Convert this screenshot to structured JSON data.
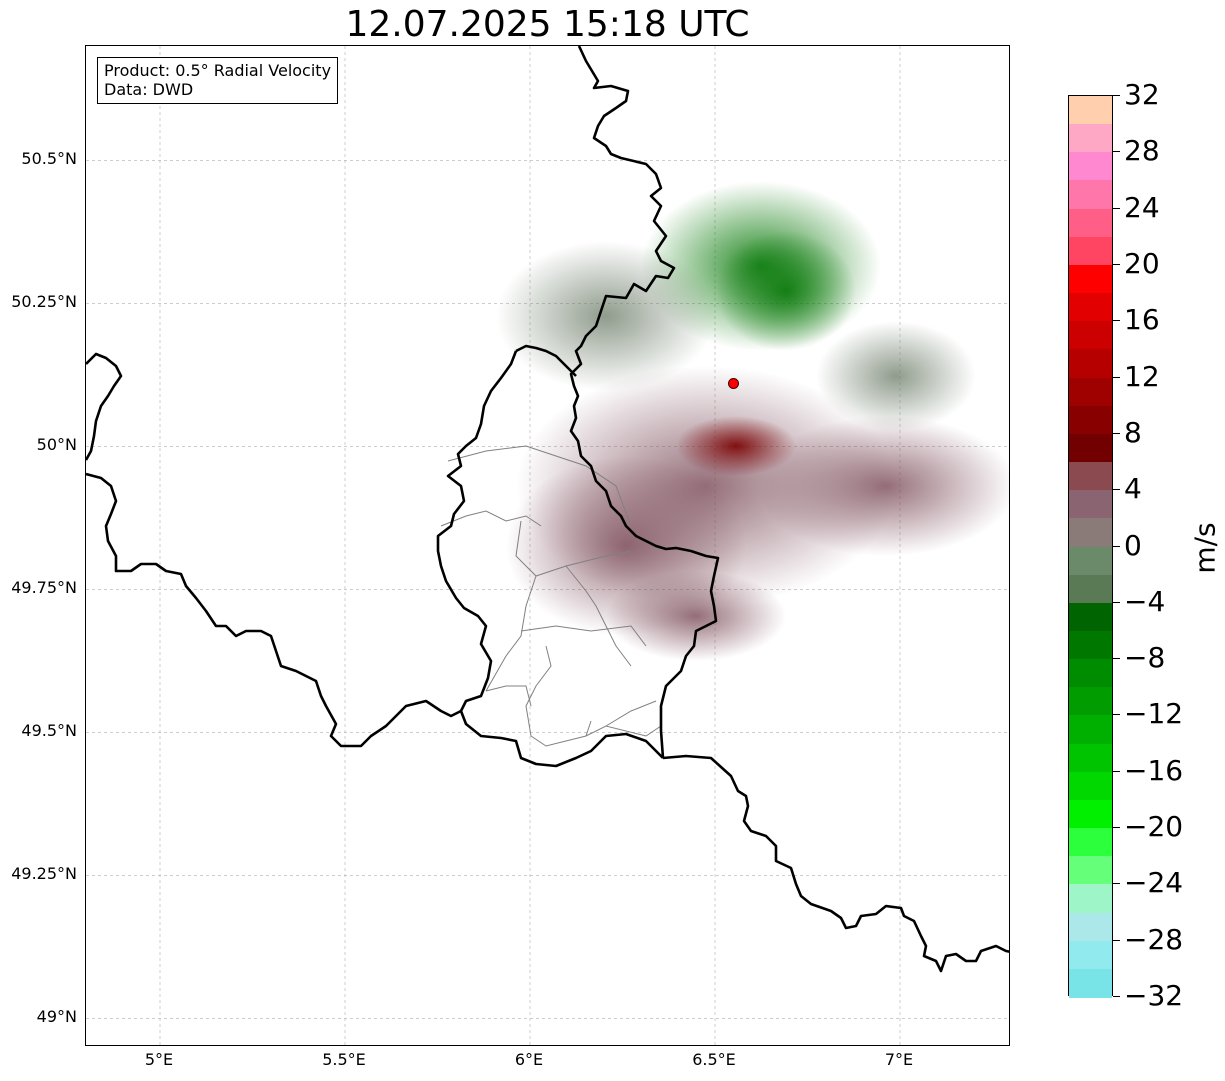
{
  "title": "12.07.2025 15:18 UTC",
  "info": {
    "product": "Product: 0.5° Radial Velocity",
    "data_source": "Data: DWD"
  },
  "map": {
    "extent": {
      "lon_min": 4.8,
      "lon_max": 7.3,
      "lat_min": 48.95,
      "lat_max": 50.7
    },
    "lat_ticks": [
      {
        "value": 50.5,
        "label": "50.5°N"
      },
      {
        "value": 50.25,
        "label": "50.25°N"
      },
      {
        "value": 50.0,
        "label": "50°N"
      },
      {
        "value": 49.75,
        "label": "49.75°N"
      },
      {
        "value": 49.5,
        "label": "49.5°N"
      },
      {
        "value": 49.25,
        "label": "49.25°N"
      },
      {
        "value": 49.0,
        "label": "49°N"
      }
    ],
    "lon_ticks": [
      {
        "value": 5.0,
        "label": "5°E"
      },
      {
        "value": 5.5,
        "label": "5.5°E"
      },
      {
        "value": 6.0,
        "label": "6°E"
      },
      {
        "value": 6.5,
        "label": "6.5°E"
      },
      {
        "value": 7.0,
        "label": "7°E"
      }
    ],
    "radar_site": {
      "lon": 6.55,
      "lat": 50.11,
      "marker_color": "#ff0000"
    },
    "gridlines": true
  },
  "colorbar": {
    "unit": "m/s",
    "min": -32,
    "max": 32,
    "tick_labels": [
      "32",
      "28",
      "24",
      "20",
      "16",
      "12",
      "8",
      "4",
      "0",
      "−4",
      "−8",
      "−12",
      "−16",
      "−20",
      "−24",
      "−28",
      "−32"
    ],
    "colors_top_to_bottom": [
      "#ffcfae",
      "#ffa8c6",
      "#ff88d0",
      "#ff77aa",
      "#ff5e86",
      "#ff4562",
      "#ff0000",
      "#e20000",
      "#cc0000",
      "#b60000",
      "#9f0000",
      "#880000",
      "#720000",
      "#8a4a50",
      "#8a6470",
      "#8a7a78",
      "#6a8a6a",
      "#5a7a55",
      "#006400",
      "#007800",
      "#008c00",
      "#009c00",
      "#00b000",
      "#00c400",
      "#00d800",
      "#00f000",
      "#2cff3c",
      "#66ff7a",
      "#9df5c8",
      "#ace8ea",
      "#90eaee",
      "#78e4e8"
    ]
  }
}
